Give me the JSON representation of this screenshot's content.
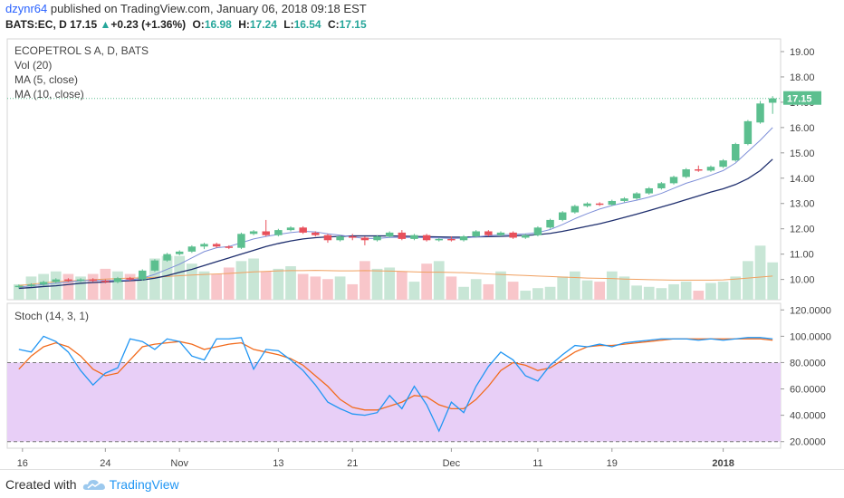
{
  "header": {
    "user": "dzynr64",
    "published_text": " published on TradingView.com, January 06, 2018 09:18 EST",
    "symbol_line": "BATS:EC, D",
    "last": "17.15",
    "change_arrow": "▲",
    "change": "+0.23 (+1.36%)",
    "o_label": "O:",
    "o_value": "16.98",
    "h_label": "H:",
    "h_value": "17.24",
    "l_label": "L:",
    "l_value": "16.54",
    "c_label": "C:",
    "c_value": "17.15"
  },
  "legends": {
    "main_title": "ECOPETROL S A, D, BATS",
    "vol": "Vol (20)",
    "ma5": "MA (5, close)",
    "ma10": "MA (10, close)",
    "stoch": "Stoch (14, 3, 1)"
  },
  "footer": {
    "created_with": "Created with",
    "brand": "TradingView"
  },
  "colors": {
    "up": "#5cbf8f",
    "down": "#e8505b",
    "vol_up": "#c8e6d6",
    "vol_down": "#f8c6ca",
    "ma5": "#7e8fd8",
    "ma10": "#1f2f6e",
    "vol_ma": "#f0a060",
    "stoch_k": "#2196f3",
    "stoch_d": "#f26b1d",
    "stoch_band": "#e8cff7",
    "last_price_tag": "#5cbf8f"
  },
  "chart_data": [
    {
      "type": "candlestick",
      "title": "ECOPETROL S A, D, BATS",
      "ylim": [
        9.2,
        19.5
      ],
      "y_ticks": [
        "19.00",
        "18.00",
        "17.00",
        "16.00",
        "15.00",
        "14.00",
        "13.00",
        "12.00",
        "11.00",
        "10.00"
      ],
      "last_price_label": "17.15",
      "x_tick_labels": [
        "16",
        "24",
        "Nov",
        "13",
        "21",
        "Dec",
        "11",
        "19",
        "2018"
      ],
      "candles": [
        {
          "o": 9.7,
          "h": 9.8,
          "l": 9.65,
          "c": 9.75
        },
        {
          "o": 9.75,
          "h": 9.85,
          "l": 9.7,
          "c": 9.8
        },
        {
          "o": 9.8,
          "h": 9.95,
          "l": 9.75,
          "c": 9.9
        },
        {
          "o": 9.9,
          "h": 10.05,
          "l": 9.85,
          "c": 10.0
        },
        {
          "o": 10.0,
          "h": 10.05,
          "l": 9.9,
          "c": 9.95
        },
        {
          "o": 9.95,
          "h": 10.05,
          "l": 9.9,
          "c": 10.0
        },
        {
          "o": 10.0,
          "h": 10.05,
          "l": 9.9,
          "c": 9.95
        },
        {
          "o": 9.95,
          "h": 10.0,
          "l": 9.85,
          "c": 9.9
        },
        {
          "o": 9.9,
          "h": 10.1,
          "l": 9.85,
          "c": 10.05
        },
        {
          "o": 10.05,
          "h": 10.1,
          "l": 9.95,
          "c": 10.0
        },
        {
          "o": 10.0,
          "h": 10.4,
          "l": 9.95,
          "c": 10.35
        },
        {
          "o": 10.35,
          "h": 10.8,
          "l": 10.3,
          "c": 10.75
        },
        {
          "o": 10.75,
          "h": 11.05,
          "l": 10.7,
          "c": 11.0
        },
        {
          "o": 11.0,
          "h": 11.15,
          "l": 10.95,
          "c": 11.1
        },
        {
          "o": 11.1,
          "h": 11.35,
          "l": 11.05,
          "c": 11.3
        },
        {
          "o": 11.3,
          "h": 11.45,
          "l": 11.2,
          "c": 11.4
        },
        {
          "o": 11.4,
          "h": 11.45,
          "l": 11.25,
          "c": 11.3
        },
        {
          "o": 11.3,
          "h": 11.35,
          "l": 11.2,
          "c": 11.25
        },
        {
          "o": 11.25,
          "h": 11.85,
          "l": 11.2,
          "c": 11.8
        },
        {
          "o": 11.8,
          "h": 11.95,
          "l": 11.75,
          "c": 11.9
        },
        {
          "o": 11.9,
          "h": 12.35,
          "l": 11.7,
          "c": 11.75
        },
        {
          "o": 11.75,
          "h": 12.0,
          "l": 11.7,
          "c": 11.95
        },
        {
          "o": 11.95,
          "h": 12.1,
          "l": 11.9,
          "c": 12.05
        },
        {
          "o": 12.05,
          "h": 12.1,
          "l": 11.8,
          "c": 11.85
        },
        {
          "o": 11.85,
          "h": 11.9,
          "l": 11.7,
          "c": 11.75
        },
        {
          "o": 11.75,
          "h": 11.8,
          "l": 11.45,
          "c": 11.55
        },
        {
          "o": 11.55,
          "h": 11.75,
          "l": 11.5,
          "c": 11.7
        },
        {
          "o": 11.7,
          "h": 11.8,
          "l": 11.55,
          "c": 11.65
        },
        {
          "o": 11.65,
          "h": 11.7,
          "l": 11.35,
          "c": 11.55
        },
        {
          "o": 11.55,
          "h": 11.75,
          "l": 11.5,
          "c": 11.7
        },
        {
          "o": 11.7,
          "h": 11.9,
          "l": 11.65,
          "c": 11.85
        },
        {
          "o": 11.85,
          "h": 11.95,
          "l": 11.55,
          "c": 11.6
        },
        {
          "o": 11.6,
          "h": 11.8,
          "l": 11.55,
          "c": 11.75
        },
        {
          "o": 11.75,
          "h": 11.8,
          "l": 11.5,
          "c": 11.55
        },
        {
          "o": 11.55,
          "h": 11.65,
          "l": 11.5,
          "c": 11.6
        },
        {
          "o": 11.6,
          "h": 11.7,
          "l": 11.5,
          "c": 11.55
        },
        {
          "o": 11.55,
          "h": 11.75,
          "l": 11.5,
          "c": 11.7
        },
        {
          "o": 11.7,
          "h": 11.95,
          "l": 11.65,
          "c": 11.9
        },
        {
          "o": 11.9,
          "h": 11.95,
          "l": 11.7,
          "c": 11.75
        },
        {
          "o": 11.75,
          "h": 11.9,
          "l": 11.7,
          "c": 11.85
        },
        {
          "o": 11.85,
          "h": 11.9,
          "l": 11.6,
          "c": 11.65
        },
        {
          "o": 11.65,
          "h": 11.8,
          "l": 11.6,
          "c": 11.75
        },
        {
          "o": 11.75,
          "h": 12.1,
          "l": 11.7,
          "c": 12.05
        },
        {
          "o": 12.05,
          "h": 12.4,
          "l": 12.0,
          "c": 12.35
        },
        {
          "o": 12.35,
          "h": 12.7,
          "l": 12.3,
          "c": 12.65
        },
        {
          "o": 12.65,
          "h": 12.95,
          "l": 12.6,
          "c": 12.9
        },
        {
          "o": 12.9,
          "h": 13.05,
          "l": 12.85,
          "c": 13.0
        },
        {
          "o": 13.0,
          "h": 13.05,
          "l": 12.9,
          "c": 12.95
        },
        {
          "o": 12.95,
          "h": 13.15,
          "l": 12.9,
          "c": 13.1
        },
        {
          "o": 13.1,
          "h": 13.25,
          "l": 13.05,
          "c": 13.2
        },
        {
          "o": 13.2,
          "h": 13.45,
          "l": 13.15,
          "c": 13.4
        },
        {
          "o": 13.4,
          "h": 13.65,
          "l": 13.35,
          "c": 13.6
        },
        {
          "o": 13.6,
          "h": 13.85,
          "l": 13.55,
          "c": 13.8
        },
        {
          "o": 13.8,
          "h": 14.1,
          "l": 13.75,
          "c": 14.05
        },
        {
          "o": 14.05,
          "h": 14.4,
          "l": 14.0,
          "c": 14.35
        },
        {
          "o": 14.35,
          "h": 14.5,
          "l": 14.25,
          "c": 14.3
        },
        {
          "o": 14.3,
          "h": 14.5,
          "l": 14.25,
          "c": 14.45
        },
        {
          "o": 14.45,
          "h": 14.75,
          "l": 14.4,
          "c": 14.7
        },
        {
          "o": 14.7,
          "h": 15.4,
          "l": 14.65,
          "c": 15.35
        },
        {
          "o": 15.35,
          "h": 16.3,
          "l": 15.3,
          "c": 16.25
        },
        {
          "o": 16.2,
          "h": 17.05,
          "l": 16.15,
          "c": 16.95
        },
        {
          "o": 16.98,
          "h": 17.24,
          "l": 16.54,
          "c": 17.15
        }
      ],
      "ma5": [
        9.7,
        9.75,
        9.8,
        9.85,
        9.9,
        9.95,
        9.97,
        9.95,
        9.96,
        9.98,
        10.05,
        10.2,
        10.4,
        10.6,
        10.85,
        11.1,
        11.25,
        11.3,
        11.45,
        11.6,
        11.7,
        11.78,
        11.85,
        11.9,
        11.88,
        11.8,
        11.75,
        11.68,
        11.62,
        11.62,
        11.66,
        11.66,
        11.66,
        11.65,
        11.64,
        11.62,
        11.63,
        11.68,
        11.73,
        11.76,
        11.78,
        11.8,
        11.85,
        11.97,
        12.17,
        12.4,
        12.6,
        12.78,
        12.92,
        13.03,
        13.13,
        13.25,
        13.4,
        13.6,
        13.8,
        13.95,
        14.12,
        14.3,
        14.6,
        15.05,
        15.5,
        16.0
      ],
      "ma10": [
        9.65,
        9.68,
        9.72,
        9.75,
        9.8,
        9.85,
        9.88,
        9.9,
        9.93,
        9.95,
        9.98,
        10.05,
        10.15,
        10.28,
        10.4,
        10.55,
        10.7,
        10.85,
        11.0,
        11.15,
        11.3,
        11.42,
        11.52,
        11.6,
        11.65,
        11.68,
        11.7,
        11.72,
        11.72,
        11.72,
        11.72,
        11.71,
        11.7,
        11.69,
        11.68,
        11.67,
        11.67,
        11.68,
        11.69,
        11.7,
        11.72,
        11.74,
        11.77,
        11.82,
        11.9,
        12.0,
        12.1,
        12.2,
        12.32,
        12.45,
        12.58,
        12.72,
        12.86,
        13.0,
        13.15,
        13.3,
        13.45,
        13.58,
        13.75,
        13.98,
        14.3,
        14.75
      ]
    },
    {
      "type": "bar",
      "title": "Vol (20)",
      "ylim": [
        0,
        3.2
      ],
      "values": [
        0.6,
        0.9,
        1.0,
        1.1,
        1.0,
        0.9,
        1.0,
        1.2,
        1.1,
        1.0,
        0.9,
        1.6,
        1.7,
        1.7,
        1.4,
        1.1,
        1.0,
        1.25,
        1.5,
        1.6,
        1.1,
        1.2,
        1.3,
        1.0,
        0.9,
        0.8,
        0.9,
        0.6,
        1.5,
        1.2,
        1.25,
        1.1,
        0.7,
        1.4,
        1.5,
        0.9,
        0.5,
        0.8,
        0.6,
        1.1,
        0.7,
        0.35,
        0.45,
        0.5,
        0.9,
        1.1,
        0.75,
        0.7,
        1.1,
        0.9,
        0.55,
        0.5,
        0.45,
        0.6,
        0.7,
        0.35,
        0.65,
        0.7,
        0.9,
        1.5,
        2.1,
        1.45
      ],
      "up": [
        1,
        1,
        1,
        1,
        0,
        1,
        0,
        0,
        1,
        0,
        1,
        1,
        1,
        1,
        1,
        1,
        0,
        0,
        1,
        1,
        0,
        1,
        1,
        0,
        0,
        0,
        1,
        0,
        0,
        1,
        1,
        0,
        1,
        0,
        1,
        0,
        1,
        1,
        0,
        1,
        0,
        1,
        1,
        1,
        1,
        1,
        1,
        0,
        1,
        1,
        1,
        1,
        1,
        1,
        1,
        0,
        1,
        1,
        1,
        1,
        1,
        1
      ],
      "ma20": [
        0.55,
        0.6,
        0.65,
        0.7,
        0.72,
        0.75,
        0.78,
        0.8,
        0.82,
        0.84,
        0.85,
        0.87,
        0.9,
        0.93,
        0.96,
        0.98,
        1.0,
        1.02,
        1.05,
        1.08,
        1.1,
        1.12,
        1.13,
        1.13,
        1.14,
        1.13,
        1.12,
        1.12,
        1.13,
        1.12,
        1.11,
        1.1,
        1.08,
        1.07,
        1.07,
        1.06,
        1.05,
        1.03,
        1.0,
        0.98,
        0.96,
        0.94,
        0.92,
        0.9,
        0.88,
        0.86,
        0.84,
        0.83,
        0.82,
        0.8,
        0.79,
        0.78,
        0.77,
        0.76,
        0.76,
        0.76,
        0.76,
        0.77,
        0.8,
        0.84,
        0.88,
        0.92
      ]
    },
    {
      "type": "line",
      "title": "Stoch (14, 3, 1)",
      "ylim": [
        15,
        125
      ],
      "y_ticks": [
        "120.0000",
        "100.0000",
        "80.0000",
        "60.0000",
        "40.0000",
        "20.0000"
      ],
      "band": [
        20,
        80
      ],
      "series": [
        {
          "name": "K",
          "values": [
            90,
            88,
            100,
            96,
            88,
            74,
            63,
            72,
            76,
            98,
            96,
            90,
            98,
            96,
            85,
            82,
            98,
            98,
            99,
            75,
            90,
            89,
            82,
            74,
            63,
            50,
            45,
            41,
            40,
            42,
            55,
            45,
            62,
            48,
            28,
            50,
            42,
            62,
            77,
            88,
            82,
            70,
            66,
            78,
            86,
            93,
            92,
            94,
            92,
            95,
            96,
            97,
            98,
            98,
            98,
            97,
            98,
            97,
            98,
            99,
            99,
            98
          ]
        },
        {
          "name": "D",
          "values": [
            75,
            85,
            92,
            95,
            92,
            85,
            75,
            70,
            72,
            82,
            92,
            94,
            95,
            96,
            94,
            90,
            92,
            94,
            95,
            90,
            88,
            86,
            83,
            78,
            70,
            62,
            52,
            46,
            44,
            44,
            47,
            50,
            55,
            54,
            48,
            45,
            45,
            52,
            62,
            74,
            80,
            78,
            74,
            76,
            82,
            88,
            92,
            93,
            93,
            94,
            95,
            96,
            97,
            98,
            98,
            98,
            98,
            98,
            98,
            98,
            98,
            97
          ]
        }
      ]
    }
  ]
}
